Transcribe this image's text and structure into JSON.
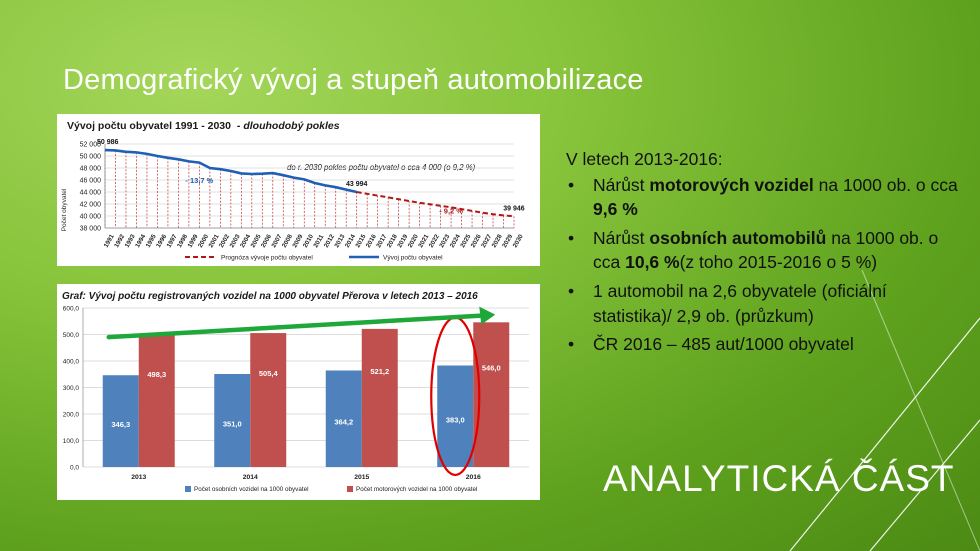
{
  "slide": {
    "title": "Demografický vývoj a stupeň automobilizace",
    "section_title": "ANALYTICKÁ ČÁST",
    "text_block": {
      "lead": "V letech 2013-2016:",
      "bullets": [
        [
          {
            "t": "Nárůst "
          },
          {
            "t": "motorových vozidel",
            "b": true
          },
          {
            "t": " na 1000 ob. o cca "
          },
          {
            "t": "9,6 %",
            "b": true
          }
        ],
        [
          {
            "t": "Nárůst "
          },
          {
            "t": "osobních automobilů",
            "b": true
          },
          {
            "t": " na 1000 ob. o cca "
          },
          {
            "t": "10,6 %",
            "b": true
          },
          {
            "t": "(z toho 2015-2016 o 5 %)"
          }
        ],
        [
          {
            "t": "1 automobil na 2,6 obyvatele (oficiální statistika)/ 2,9 ob. (průzkum)"
          }
        ],
        [
          {
            "t": "ČR 2016 – 485 aut/1000 obyvatel"
          }
        ]
      ]
    }
  },
  "chart_data": [
    {
      "type": "line",
      "title": "Vývoj počtu obyvatel 1991 - 2030",
      "title_suffix": "- dlouhodobý pokles",
      "annotation": "do r. 2030 pokles počtu obyvatel o cca 4 000 (o 9,2 %)",
      "ylabel": "Počet obyvatel",
      "ylim": [
        38000,
        52000
      ],
      "yticks": [
        "38 000",
        "40 000",
        "42 000",
        "44 000",
        "46 000",
        "48 000",
        "50 000",
        "52 000"
      ],
      "x": [
        1991,
        1992,
        1993,
        1994,
        1995,
        1996,
        1997,
        1998,
        1999,
        2000,
        2001,
        2002,
        2003,
        2004,
        2005,
        2006,
        2007,
        2008,
        2009,
        2010,
        2011,
        2012,
        2013,
        2014,
        2015,
        2016,
        2017,
        2018,
        2019,
        2020,
        2021,
        2022,
        2023,
        2024,
        2025,
        2026,
        2027,
        2028,
        2029,
        2030
      ],
      "series": [
        {
          "name": "Vývoj počtu obyvatel",
          "color": "#1f5fb4",
          "style": "solid",
          "x": [
            1991,
            1992,
            1993,
            1994,
            1995,
            1996,
            1997,
            1998,
            1999,
            2000,
            2001,
            2002,
            2003,
            2004,
            2005,
            2006,
            2007,
            2008,
            2009,
            2010,
            2011,
            2012,
            2013,
            2014,
            2015
          ],
          "values": [
            50986,
            50920,
            50700,
            50600,
            50350,
            50000,
            49700,
            49450,
            49100,
            48900,
            48000,
            47800,
            47500,
            47100,
            47000,
            47050,
            47150,
            46800,
            46400,
            46100,
            45500,
            45100,
            44800,
            44400,
            43994
          ]
        },
        {
          "name": "Prognóza vývoje počtu obyvatel",
          "color": "#b01818",
          "style": "dashed",
          "x": [
            2015,
            2016,
            2017,
            2018,
            2019,
            2020,
            2021,
            2022,
            2023,
            2024,
            2025,
            2026,
            2027,
            2028,
            2029,
            2030
          ],
          "values": [
            43994,
            43700,
            43400,
            43100,
            42800,
            42500,
            42200,
            41950,
            41700,
            41450,
            41150,
            40850,
            40550,
            40300,
            40100,
            39946
          ]
        }
      ],
      "data_labels": [
        {
          "text": "50 986",
          "x": 1991,
          "y": 50986
        },
        {
          "text": "43 994",
          "x": 2015,
          "y": 43994
        },
        {
          "text": "39 946",
          "x": 2030,
          "y": 39946
        }
      ],
      "change_labels": [
        {
          "text": "- 13,7 %",
          "x": 2000,
          "y": 45500,
          "color": "#1f5fb4"
        },
        {
          "text": "- 9,2 %",
          "x": 2024,
          "y": 40400,
          "color": "#b01818"
        }
      ],
      "legend_placement": "bottom"
    },
    {
      "type": "bar",
      "title": "Graf: Vývoj počtu registrovaných vozidel na 1000 obyvatel Přerova v letech 2013 – 2016",
      "categories": [
        "2013",
        "2014",
        "2015",
        "2016"
      ],
      "ylim": [
        0,
        600
      ],
      "yticks": [
        "0,0",
        "100,0",
        "200,0",
        "300,0",
        "400,0",
        "500,0",
        "600,0"
      ],
      "series": [
        {
          "name": "Počet osobních vozidel na 1000 obyvatel",
          "color": "#4f81bd",
          "values": [
            346.3,
            351.0,
            364.2,
            383.0
          ],
          "labels": [
            "346,3",
            "351,0",
            "364,2",
            "383,0"
          ]
        },
        {
          "name": "Počet motorových vozidel na 1000 obyvatel",
          "color": "#c0504d",
          "values": [
            498.3,
            505.4,
            521.2,
            546.0
          ],
          "labels": [
            "498,3",
            "505,4",
            "521,2",
            "546,0"
          ]
        }
      ],
      "highlight": {
        "category": "2016",
        "color": "#e00000"
      },
      "trend_arrow": {
        "color": "#1fa83a",
        "from": [
          2013,
          490
        ],
        "to": [
          2016,
          575
        ]
      },
      "grid": true,
      "legend_placement": "bottom"
    }
  ]
}
